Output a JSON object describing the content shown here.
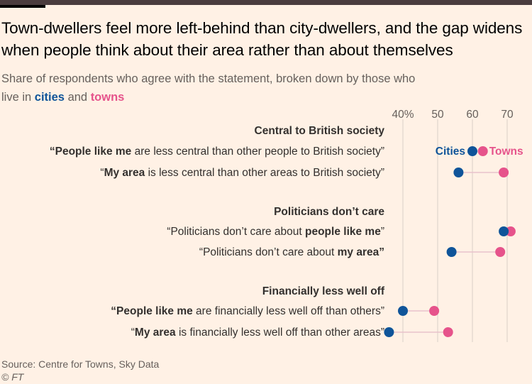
{
  "title": "Town-dwellers feel more left-behind than city-dwellers, and the gap widens when people think about their area rather than about themselves",
  "subtitle": {
    "prefix": "Share of respondents who agree with the statement, broken down by those who live in ",
    "cities": "cities",
    "and": " and ",
    "towns": "towns"
  },
  "source": "Source: Centre for Towns, Sky Data",
  "copyright": "© FT",
  "colors": {
    "cities": "#0f5499",
    "towns": "#e6538b",
    "background": "#fff1e5",
    "grid": "#d9cfc6",
    "connector": "#e8c2cc"
  },
  "chart_data": {
    "type": "dot",
    "xlim": [
      40,
      70
    ],
    "ticks": [
      {
        "value": 40,
        "label": "40%"
      },
      {
        "value": 50,
        "label": "50"
      },
      {
        "value": 60,
        "label": "60"
      },
      {
        "value": 70,
        "label": "70"
      }
    ],
    "series": [
      {
        "name": "Cities",
        "color": "#0f5499"
      },
      {
        "name": "Towns",
        "color": "#e6538b"
      }
    ],
    "groups": [
      {
        "title": "Central to British society",
        "rows": [
          {
            "parts": [
              [
                "“People like me",
                true
              ],
              [
                " are less central than other people to British society”",
                false
              ]
            ],
            "cities": 60,
            "towns": 63,
            "inline_legend": true
          },
          {
            "parts": [
              [
                "“",
                false
              ],
              [
                "My area",
                true
              ],
              [
                " is less central than other areas to British society”",
                false
              ]
            ],
            "cities": 56,
            "towns": 69
          }
        ]
      },
      {
        "title": "Politicians don’t care",
        "rows": [
          {
            "parts": [
              [
                "“Politicians don’t care about ",
                false
              ],
              [
                "people like me",
                true
              ],
              [
                "”",
                false
              ]
            ],
            "cities": 69,
            "towns": 71
          },
          {
            "parts": [
              [
                "“Politicians don’t care about ",
                false
              ],
              [
                "my area”",
                true
              ]
            ],
            "cities": 54,
            "towns": 68
          }
        ]
      },
      {
        "title": "Financially less well off",
        "rows": [
          {
            "parts": [
              [
                "“People like me",
                true
              ],
              [
                " are financially less well off than others”",
                false
              ]
            ],
            "cities": 40,
            "towns": 49
          },
          {
            "parts": [
              [
                "“",
                false
              ],
              [
                "My area",
                true
              ],
              [
                " is financially less well off than other areas”",
                false
              ]
            ],
            "cities": 36,
            "towns": 53
          }
        ]
      }
    ]
  }
}
